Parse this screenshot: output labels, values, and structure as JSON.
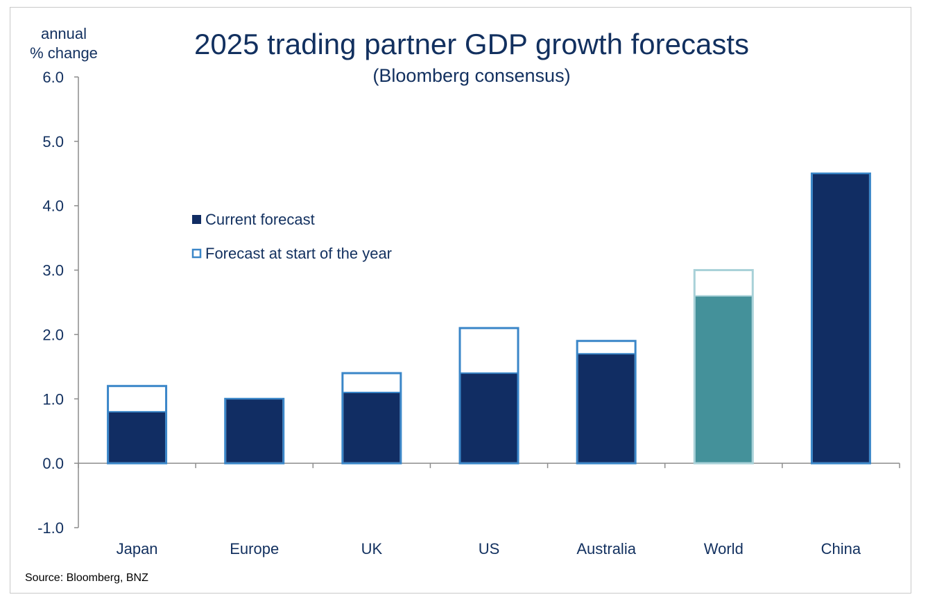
{
  "chart_data": {
    "type": "bar",
    "title": "2025 trading partner GDP growth forecasts",
    "subtitle": "(Bloomberg consensus)",
    "ylabel_lines": [
      "annual",
      "% change"
    ],
    "ylim": [
      -1.0,
      6.0
    ],
    "yticks": [
      "6.0",
      "5.0",
      "4.0",
      "3.0",
      "2.0",
      "1.0",
      "0.0",
      "-1.0"
    ],
    "categories": [
      "Japan",
      "Europe",
      "UK",
      "US",
      "Australia",
      "World",
      "China"
    ],
    "series": [
      {
        "name": "Current forecast",
        "values": [
          0.8,
          1.0,
          1.1,
          1.4,
          1.7,
          2.6,
          4.5
        ]
      },
      {
        "name": "Forecast at start of the year",
        "values": [
          1.2,
          1.0,
          1.4,
          2.1,
          1.9,
          3.0,
          4.5
        ]
      }
    ],
    "highlight": {
      "category": "World",
      "fill": "#44919a",
      "outline": "#a8d1d8"
    },
    "colors": {
      "current": "#112d63",
      "outline": "#3a86c8",
      "text": "#12305f",
      "axis": "#8c8c8c"
    },
    "source": "Source: Bloomberg, BNZ"
  }
}
